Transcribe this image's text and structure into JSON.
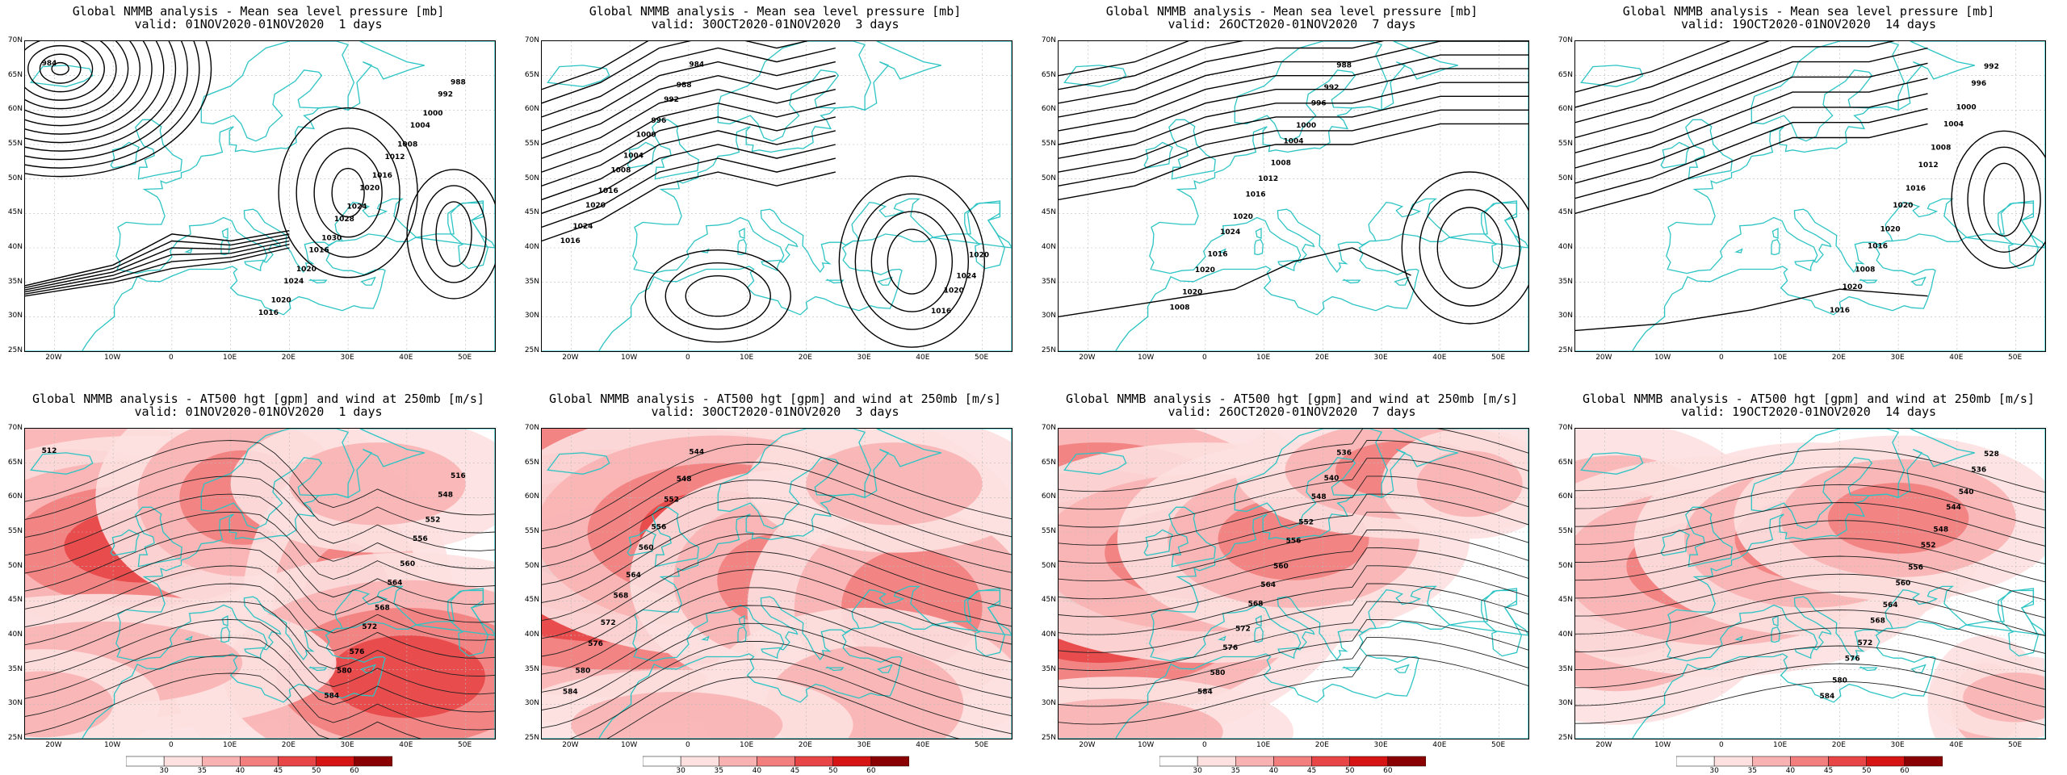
{
  "panels": [
    {
      "title": "Global NMMB analysis - Mean sea level pressure [mb]",
      "valid": "valid: 01NOV2020-01NOV2020  1 days",
      "kind": "mslp",
      "contour_labels": [
        "984",
        "988",
        "992",
        "1000",
        "1004",
        "1008",
        "1012",
        "1016",
        "1020",
        "1024",
        "1028",
        "1030",
        "1016",
        "1020",
        "1024",
        "1020",
        "1016"
      ]
    },
    {
      "title": "Global NMMB analysis - Mean sea level pressure [mb]",
      "valid": "valid: 30OCT2020-01NOV2020  3 days",
      "kind": "mslp",
      "contour_labels": [
        "984",
        "988",
        "992",
        "996",
        "1000",
        "1004",
        "1008",
        "1016",
        "1020",
        "1024",
        "1016",
        "1020",
        "1024",
        "1020",
        "1016"
      ]
    },
    {
      "title": "Global NMMB analysis - Mean sea level pressure [mb]",
      "valid": "valid: 26OCT2020-01NOV2020  7 days",
      "kind": "mslp",
      "contour_labels": [
        "988",
        "992",
        "996",
        "1000",
        "1004",
        "1008",
        "1012",
        "1016",
        "1020",
        "1024",
        "1016",
        "1020",
        "1020",
        "1008"
      ]
    },
    {
      "title": "Global NMMB analysis - Mean sea level pressure [mb]",
      "valid": "valid: 19OCT2020-01NOV2020  14 days",
      "kind": "mslp",
      "contour_labels": [
        "992",
        "996",
        "1000",
        "1004",
        "1008",
        "1012",
        "1016",
        "1020",
        "1020",
        "1016",
        "1008",
        "1020",
        "1016"
      ]
    },
    {
      "title": "Global NMMB analysis - AT500 hgt [gpm] and wind at 250mb [m/s]",
      "valid": "valid: 01NOV2020-01NOV2020  1 days",
      "kind": "z500",
      "contour_labels": [
        "512",
        "516",
        "548",
        "552",
        "556",
        "560",
        "564",
        "568",
        "572",
        "576",
        "580",
        "584"
      ]
    },
    {
      "title": "Global NMMB analysis - AT500 hgt [gpm] and wind at 250mb [m/s]",
      "valid": "valid: 30OCT2020-01NOV2020  3 days",
      "kind": "z500",
      "contour_labels": [
        "544",
        "548",
        "552",
        "556",
        "560",
        "564",
        "568",
        "572",
        "576",
        "580",
        "584"
      ]
    },
    {
      "title": "Global NMMB analysis - AT500 hgt [gpm] and wind at 250mb [m/s]",
      "valid": "valid: 26OCT2020-01NOV2020  7 days",
      "kind": "z500",
      "contour_labels": [
        "536",
        "540",
        "548",
        "552",
        "556",
        "560",
        "564",
        "568",
        "572",
        "576",
        "580",
        "584"
      ]
    },
    {
      "title": "Global NMMB analysis - AT500 hgt [gpm] and wind at 250mb [m/s]",
      "valid": "valid: 19OCT2020-01NOV2020  14 days",
      "kind": "z500",
      "contour_labels": [
        "528",
        "536",
        "540",
        "544",
        "548",
        "552",
        "556",
        "560",
        "564",
        "568",
        "572",
        "576",
        "580",
        "584"
      ]
    }
  ],
  "lat_labels": [
    "70N",
    "65N",
    "60N",
    "55N",
    "50N",
    "45N",
    "40N",
    "35N",
    "30N",
    "25N"
  ],
  "lon_labels": [
    "20W",
    "10W",
    "0",
    "10E",
    "20E",
    "30E",
    "40E",
    "50E"
  ],
  "colorbar_labels": [
    "30",
    "35",
    "40",
    "45",
    "50",
    "60"
  ],
  "colors": {
    "coast": "#2ec4c4",
    "contour": "#000000",
    "grid": "#bbbbbb",
    "wind_shades": [
      "#ffffff",
      "#fde0e0",
      "#f9b2b2",
      "#f27e7e",
      "#e84646",
      "#d71414",
      "#8a0000"
    ]
  }
}
